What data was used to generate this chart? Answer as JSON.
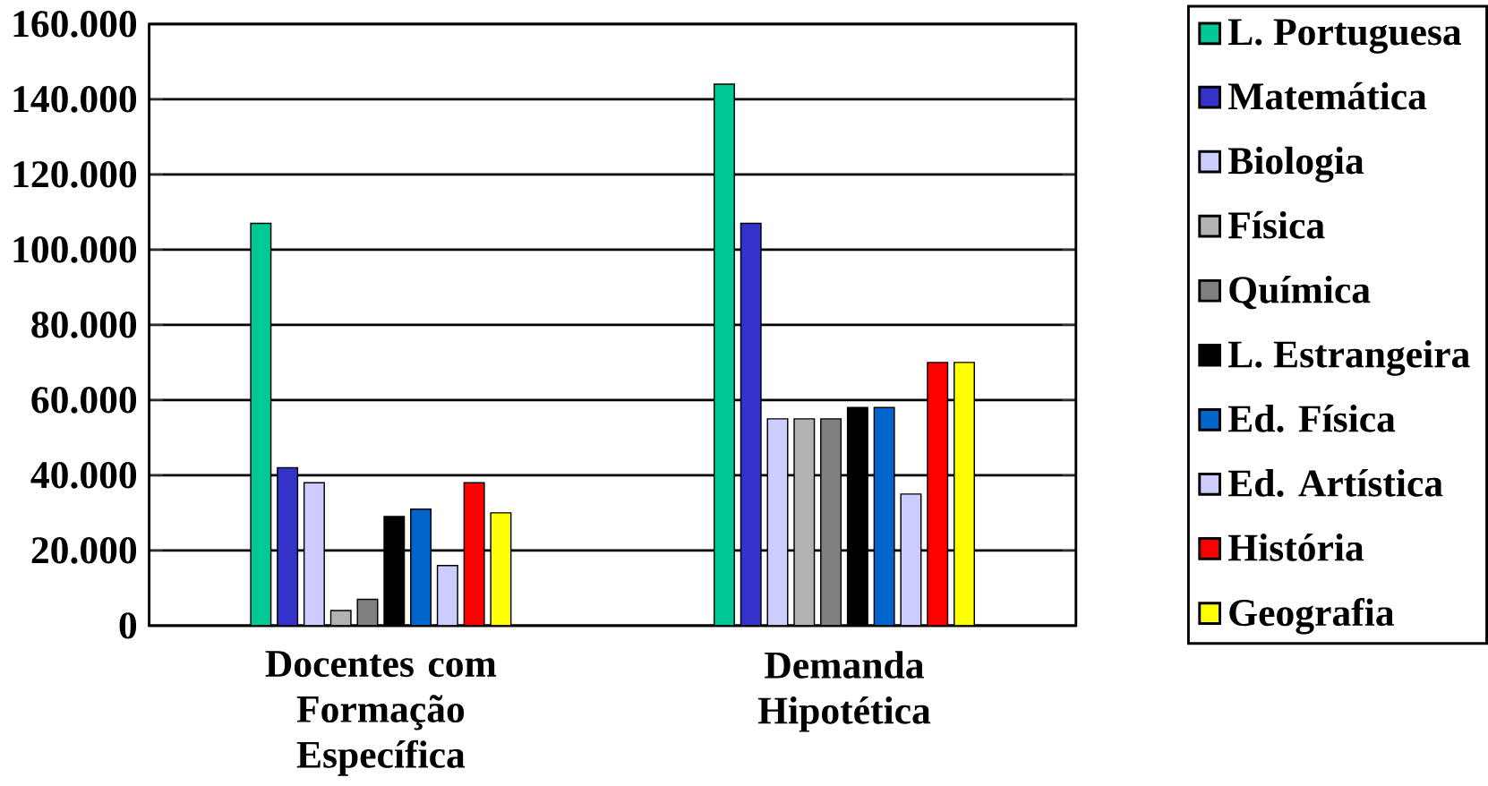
{
  "chart_data": {
    "type": "bar",
    "categories": [
      "Docentes com Formação Específica",
      "Demanda Hipotética"
    ],
    "series": [
      {
        "name": "L. Portuguesa",
        "color": "#00c896",
        "values": [
          107000,
          144000
        ]
      },
      {
        "name": "Matemática",
        "color": "#3333cc",
        "values": [
          42000,
          107000
        ]
      },
      {
        "name": "Biologia",
        "color": "#ccccff",
        "values": [
          38000,
          55000
        ]
      },
      {
        "name": "Física",
        "color": "#b2b2b2",
        "values": [
          4000,
          55000
        ]
      },
      {
        "name": "Química",
        "color": "#808080",
        "values": [
          7000,
          55000
        ]
      },
      {
        "name": "L. Estrangeira",
        "color": "#000000",
        "values": [
          29000,
          58000
        ]
      },
      {
        "name": "Ed. Física",
        "color": "#0066cc",
        "values": [
          31000,
          58000
        ]
      },
      {
        "name": "Ed. Artística",
        "color": "#ccccff",
        "values": [
          16000,
          35000
        ]
      },
      {
        "name": "História",
        "color": "#ff0000",
        "values": [
          38000,
          70000
        ]
      },
      {
        "name": "Geografia",
        "color": "#ffff00",
        "values": [
          30000,
          70000
        ]
      }
    ],
    "ylim": [
      0,
      160000
    ],
    "yticks": [
      {
        "value": 0,
        "label": "0"
      },
      {
        "value": 20000,
        "label": "20.000"
      },
      {
        "value": 40000,
        "label": "40.000"
      },
      {
        "value": 60000,
        "label": "60.000"
      },
      {
        "value": 80000,
        "label": "80.000"
      },
      {
        "value": 100000,
        "label": "100.000"
      },
      {
        "value": 120000,
        "label": "120.000"
      },
      {
        "value": 140000,
        "label": "140.000"
      },
      {
        "value": 160000,
        "label": "160.000"
      }
    ],
    "grid": "y",
    "legend": "right"
  }
}
